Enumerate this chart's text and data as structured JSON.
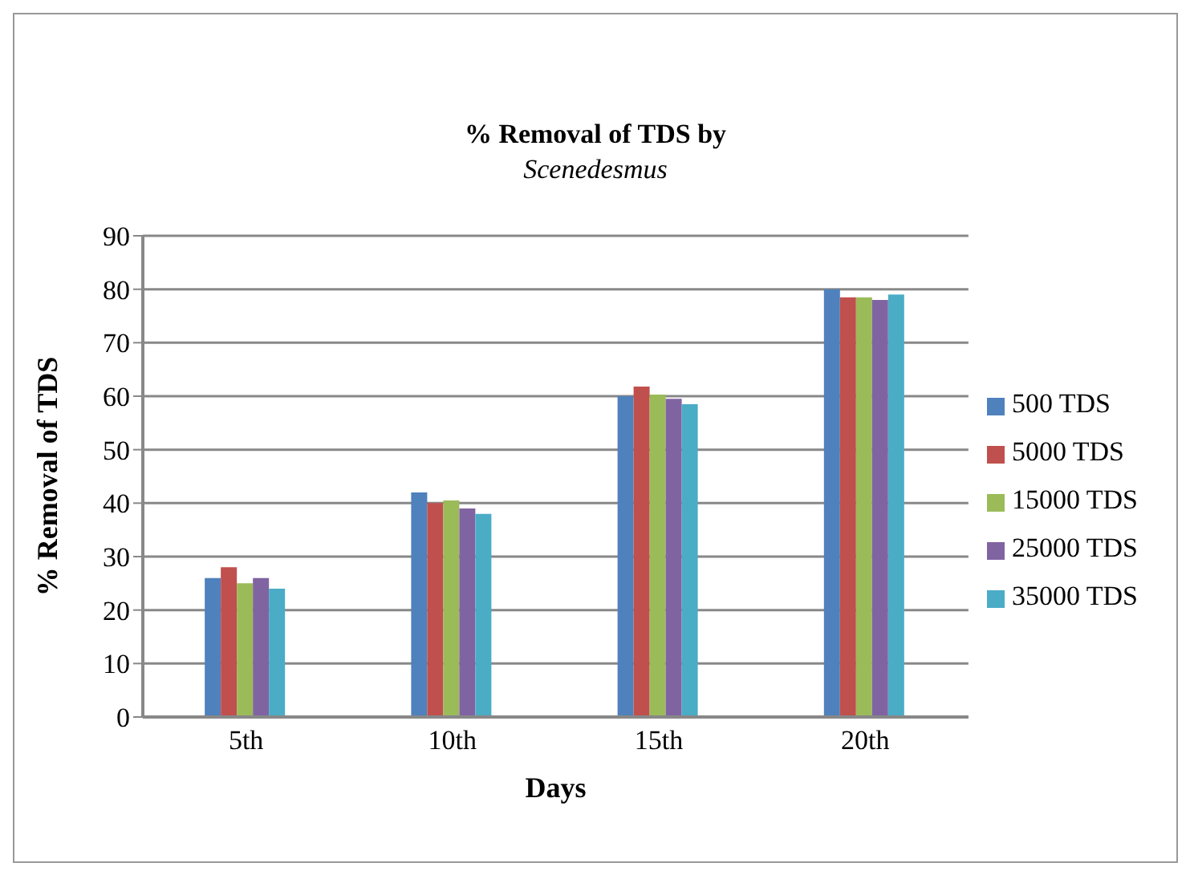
{
  "chart_data": {
    "type": "bar",
    "title": "% Removal of TDS by",
    "subtitle": "Scenedesmus",
    "xlabel": "Days",
    "ylabel": "% Removal of TDS",
    "categories": [
      "5th",
      "10th",
      "15th",
      "20th"
    ],
    "series": [
      {
        "name": "500 TDS",
        "color": "#4f81bd",
        "values": [
          26,
          42,
          60,
          80
        ]
      },
      {
        "name": "5000 TDS",
        "color": "#c0504d",
        "values": [
          28,
          40,
          61.8,
          78.5
        ]
      },
      {
        "name": "15000 TDS",
        "color": "#9bbb59",
        "values": [
          25,
          40.5,
          60.3,
          78.5
        ]
      },
      {
        "name": "25000 TDS",
        "color": "#8064a2",
        "values": [
          26,
          39,
          59.5,
          78
        ]
      },
      {
        "name": "35000 TDS",
        "color": "#4bacc6",
        "values": [
          24,
          38,
          58.5,
          79
        ]
      }
    ],
    "ylim": [
      0,
      90
    ],
    "yticks": [
      0,
      10,
      20,
      30,
      40,
      50,
      60,
      70,
      80,
      90
    ],
    "grid": "y",
    "legend": "right"
  }
}
